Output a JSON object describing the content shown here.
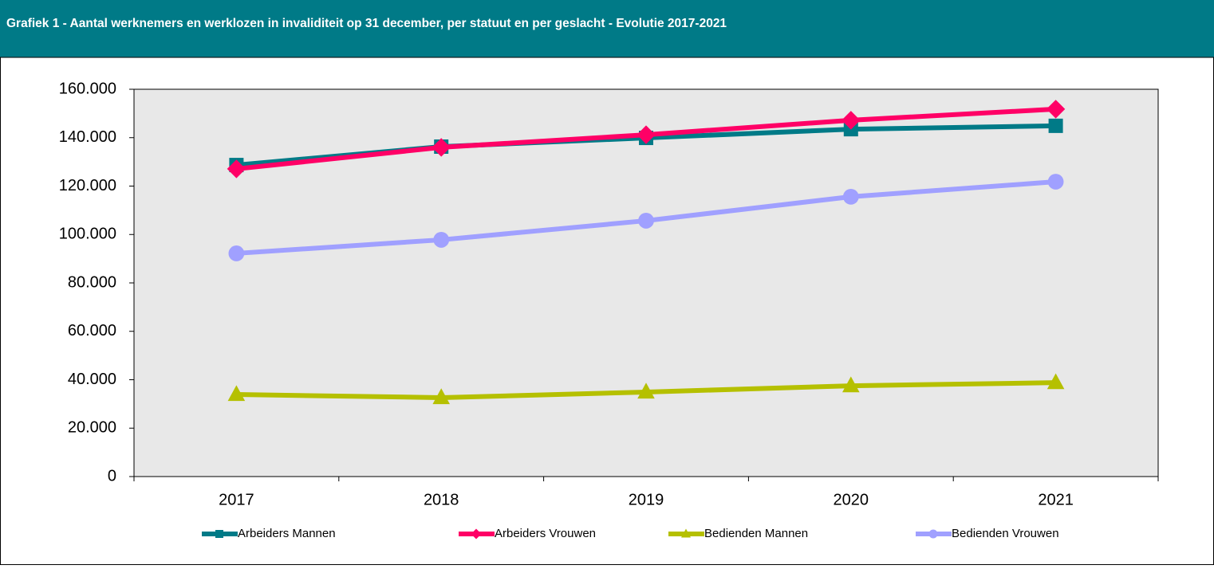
{
  "chart_data": {
    "type": "line",
    "title": "Grafiek 1 - Aantal werknemers en werklozen in invaliditeit op 31 december, per statuut en per geslacht - Evolutie 2017-2021",
    "categories": [
      "2017",
      "2018",
      "2019",
      "2020",
      "2021"
    ],
    "series": [
      {
        "name": "Arbeiders Mannen",
        "color": "#007a87",
        "marker": "square",
        "values": [
          128700,
          136300,
          139900,
          143500,
          144900
        ]
      },
      {
        "name": "Arbeiders Vrouwen",
        "color": "#ff0066",
        "marker": "diamond",
        "values": [
          127100,
          136000,
          141200,
          147200,
          151800
        ]
      },
      {
        "name": "Bedienden Mannen",
        "color": "#b5c000",
        "marker": "triangle",
        "values": [
          33900,
          32600,
          34900,
          37500,
          38800
        ]
      },
      {
        "name": "Bedienden Vrouwen",
        "color": "#a0a0ff",
        "marker": "circle",
        "values": [
          92200,
          97800,
          105700,
          115600,
          121800
        ]
      }
    ],
    "ylim": [
      0,
      160000
    ],
    "yticks": [
      0,
      {
        "value": 20000,
        "label": "20.000"
      },
      {
        "value": 40000,
        "label": "40.000"
      },
      {
        "value": 60000,
        "label": "60.000"
      },
      {
        "value": 80000,
        "label": "80.000"
      },
      {
        "value": 100000,
        "label": "100.000"
      },
      {
        "value": 120000,
        "label": "120.000"
      },
      {
        "value": 140000,
        "label": "140.000"
      },
      {
        "value": 160000,
        "label": "160.000"
      }
    ],
    "legend": "bottom"
  }
}
